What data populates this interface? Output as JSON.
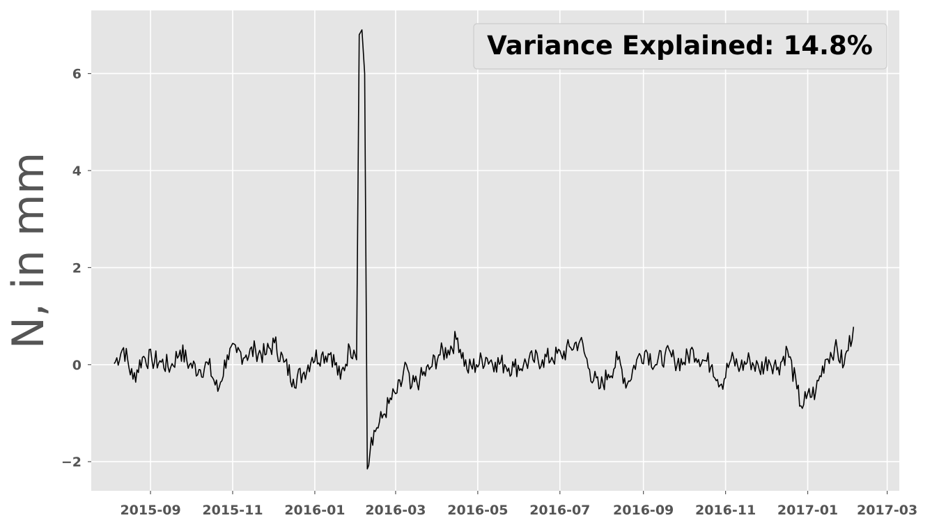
{
  "chart_data": {
    "type": "line",
    "title": "",
    "xlabel": "",
    "ylabel": "N, in mm",
    "annotation": "Variance Explained: 14.8%",
    "x_ticks": [
      "2015-09",
      "2015-11",
      "2016-01",
      "2016-03",
      "2016-05",
      "2016-07",
      "2016-09",
      "2016-11",
      "2017-01",
      "2017-03"
    ],
    "y_ticks": [
      "−2",
      "0",
      "2",
      "4",
      "6"
    ],
    "xlim": [
      "2015-07-19",
      "2017-03-10"
    ],
    "ylim": [
      -2.6,
      7.3
    ],
    "grid": true,
    "legend": "none",
    "series": [
      {
        "color": "#000000",
        "x": [
          "2015-08-05",
          "2015-08-12",
          "2015-08-19",
          "2015-08-26",
          "2015-09-02",
          "2015-09-09",
          "2015-09-16",
          "2015-09-23",
          "2015-09-30",
          "2015-10-07",
          "2015-10-14",
          "2015-10-21",
          "2015-10-28",
          "2015-11-04",
          "2015-11-11",
          "2015-11-18",
          "2015-11-25",
          "2015-12-02",
          "2015-12-09",
          "2015-12-16",
          "2015-12-23",
          "2015-12-30",
          "2016-01-06",
          "2016-01-13",
          "2016-01-20",
          "2016-01-27",
          "2016-01-30",
          "2016-02-01",
          "2016-02-03",
          "2016-02-05",
          "2016-02-07",
          "2016-02-09",
          "2016-02-12",
          "2016-02-16",
          "2016-02-20",
          "2016-02-25",
          "2016-03-01",
          "2016-03-05",
          "2016-03-08",
          "2016-03-12",
          "2016-03-19",
          "2016-03-26",
          "2016-04-02",
          "2016-04-09",
          "2016-04-16",
          "2016-04-23",
          "2016-04-30",
          "2016-05-07",
          "2016-05-14",
          "2016-05-21",
          "2016-05-28",
          "2016-06-04",
          "2016-06-11",
          "2016-06-18",
          "2016-06-25",
          "2016-07-02",
          "2016-07-09",
          "2016-07-16",
          "2016-07-23",
          "2016-07-30",
          "2016-08-06",
          "2016-08-13",
          "2016-08-20",
          "2016-08-27",
          "2016-09-03",
          "2016-09-10",
          "2016-09-17",
          "2016-09-24",
          "2016-10-01",
          "2016-10-08",
          "2016-10-15",
          "2016-10-22",
          "2016-10-29",
          "2016-11-05",
          "2016-11-12",
          "2016-11-19",
          "2016-11-26",
          "2016-12-03",
          "2016-12-10",
          "2016-12-17",
          "2016-12-24",
          "2016-12-27",
          "2016-12-31",
          "2017-01-07",
          "2017-01-14",
          "2017-01-21",
          "2017-01-28",
          "2017-02-04"
        ],
        "values": [
          0.02,
          0.35,
          -0.3,
          0.15,
          0.1,
          0.05,
          -0.05,
          0.3,
          0.0,
          -0.1,
          0.0,
          -0.55,
          0.2,
          0.25,
          0.2,
          0.3,
          0.2,
          0.45,
          0.05,
          -0.3,
          -0.2,
          0.15,
          0.2,
          0.25,
          -0.3,
          0.35,
          0.3,
          0.1,
          6.8,
          6.9,
          6.0,
          -2.15,
          -1.5,
          -1.3,
          -1.1,
          -0.8,
          -0.6,
          -0.45,
          0.05,
          -0.5,
          -0.3,
          -0.1,
          0.2,
          0.3,
          0.55,
          -0.1,
          0.0,
          0.15,
          0.05,
          0.0,
          -0.05,
          0.0,
          0.1,
          0.1,
          0.15,
          0.2,
          0.35,
          0.5,
          -0.1,
          -0.5,
          -0.2,
          0.1,
          -0.4,
          0.1,
          0.3,
          0.0,
          0.2,
          0.1,
          0.05,
          0.3,
          0.1,
          0.0,
          -0.4,
          0.1,
          -0.05,
          0.1,
          -0.1,
          0.1,
          -0.05,
          0.3,
          -0.5,
          -0.85,
          -0.7,
          -0.55,
          0.1,
          0.35,
          0.0,
          0.78
        ]
      }
    ]
  },
  "colors": {
    "plot_bg": "#e5e5e5",
    "grid": "#ffffff",
    "line": "#000000",
    "tick": "#555555"
  }
}
